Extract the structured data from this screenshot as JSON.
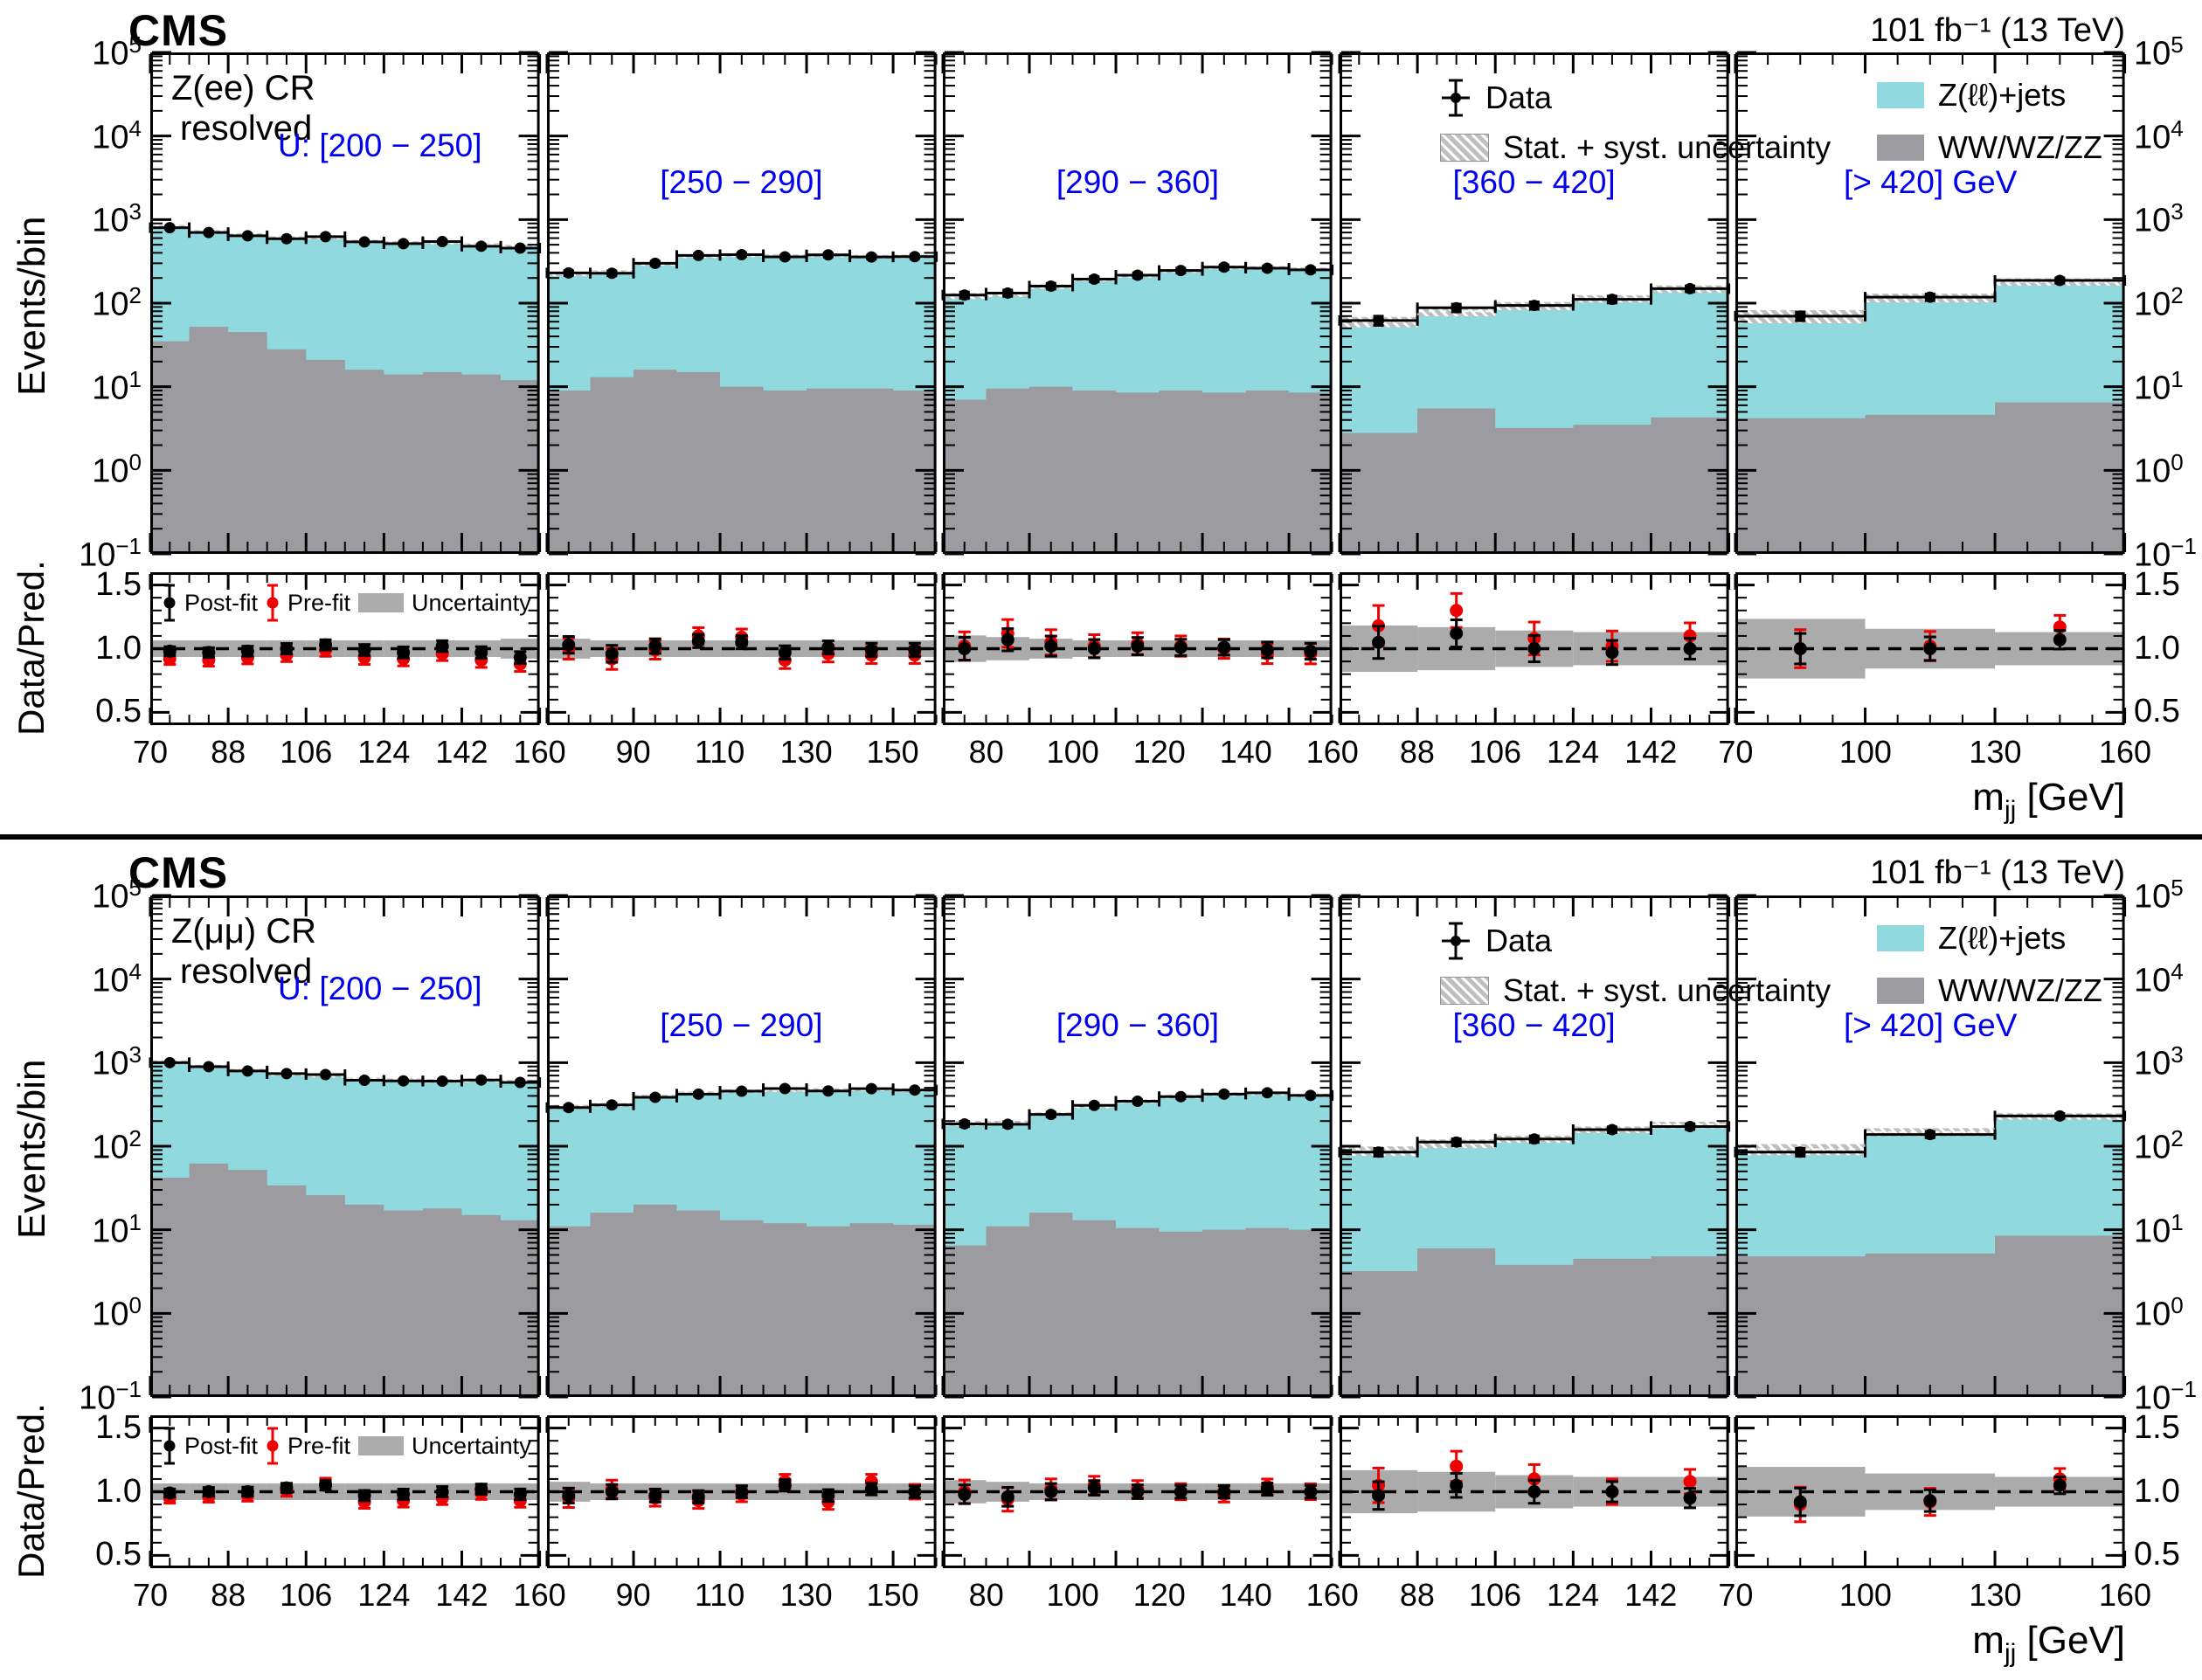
{
  "chart_data": {
    "type": "bar",
    "subtype": "stacked-log-histogram-with-ratio",
    "x_axis_title": {
      "main": "m",
      "sub": "jj",
      "unit": " [GeV]"
    },
    "y_tick_exponents": [
      "5",
      "4",
      "3",
      "2",
      "1",
      "0",
      "−1"
    ],
    "ratio_tick_labels": [
      {
        "v": 1.5,
        "t": "1.5"
      },
      {
        "v": 1.0,
        "t": "1.0"
      },
      {
        "v": 0.5,
        "t": "0.5"
      }
    ],
    "y_range_exp": [
      -1,
      5
    ],
    "ratio_range": [
      0.4,
      1.6
    ],
    "colors": {
      "zjets": "#8FD9DF",
      "vv": "#9C9CA0",
      "band": "#ABABAB",
      "hatch_gray": "#BFBFBF",
      "blue": "#0000EE",
      "red": "#EE0000"
    },
    "figures": [
      {
        "cms": "CMS",
        "lumi": "101 fb⁻¹ (13 TeV)",
        "region": "Z(ee) CR",
        "mode": "resolved",
        "events_axis_title": "Events/bin",
        "ratio_axis_title": "Data/Pred.",
        "legend": {
          "data": "Data",
          "unc": "Stat. + syst. uncertainty",
          "zjets": "Z(ℓℓ)+jets",
          "vv": "WW/WZ/ZZ"
        },
        "ratio_legend": {
          "post": "Post-fit",
          "pre": "Pre-fit",
          "unc": "Uncertainty"
        },
        "panels": [
          {
            "label": "U: [200 − 250]",
            "x_min": 70,
            "x_max": 160,
            "bin_width": 9,
            "x_major_step": 18,
            "x_labels": [
              70,
              88,
              106,
              124,
              142,
              160
            ],
            "vv": [
              35,
              52,
              45,
              28,
              21,
              16,
              14,
              15,
              14,
              12
            ],
            "total": [
              820,
              710,
              650,
              600,
              610,
              545,
              525,
              535,
              495,
              470
            ],
            "data": [
              800,
              700,
              640,
              590,
              625,
              540,
              515,
              545,
              480,
              455
            ],
            "band_frac": [
              0.05,
              0.05,
              0.05,
              0.05,
              0.05,
              0.05,
              0.05,
              0.05,
              0.05,
              0.06
            ],
            "ratio_post": [
              0.98,
              0.97,
              0.98,
              1.0,
              1.03,
              0.99,
              0.97,
              1.02,
              0.97,
              0.93
            ],
            "ratio_pre": [
              0.92,
              0.91,
              0.93,
              0.95,
              0.99,
              0.93,
              0.92,
              0.96,
              0.91,
              0.88
            ]
          },
          {
            "label": "[250 − 290]",
            "x_min": 70,
            "x_max": 160,
            "bin_width": 10,
            "x_major_step": 20,
            "x_labels": [
              90,
              110,
              130,
              150
            ],
            "vv": [
              9,
              13,
              16,
              15,
              10,
              9,
              9.5,
              9.5,
              9
            ],
            "total": [
              225,
              235,
              295,
              365,
              375,
              365,
              375,
              360,
              362
            ],
            "data": [
              230,
              228,
              300,
              372,
              380,
              358,
              378,
              357,
              360
            ],
            "band_frac": [
              0.06,
              0.05,
              0.05,
              0.05,
              0.05,
              0.05,
              0.05,
              0.05,
              0.05
            ],
            "ratio_post": [
              1.03,
              0.96,
              1.02,
              1.06,
              1.05,
              0.97,
              1.01,
              0.99,
              0.99
            ],
            "ratio_pre": [
              1.0,
              0.92,
              0.99,
              1.1,
              1.09,
              0.91,
              0.96,
              0.95,
              0.95
            ]
          },
          {
            "label": "[290 − 360]",
            "x_min": 70,
            "x_max": 160,
            "bin_width": 10,
            "x_major_step": 20,
            "x_labels": [
              80,
              100,
              120,
              140,
              160
            ],
            "vv": [
              7,
              9.5,
              10,
              9,
              8.5,
              9,
              8.5,
              9,
              8.5
            ],
            "total": [
              122,
              128,
              158,
              192,
              213,
              243,
              268,
              264,
              254
            ],
            "data": [
              125,
              132,
              160,
              194,
              216,
              246,
              270,
              262,
              250
            ],
            "band_frac": [
              0.08,
              0.07,
              0.06,
              0.05,
              0.05,
              0.05,
              0.05,
              0.05,
              0.05
            ],
            "ratio_post": [
              1.0,
              1.07,
              1.02,
              1.0,
              1.02,
              1.01,
              1.01,
              0.99,
              0.98
            ],
            "ratio_pre": [
              1.02,
              1.12,
              1.05,
              1.02,
              1.04,
              1.02,
              1.0,
              0.96,
              0.96
            ]
          },
          {
            "label": "[360 − 420]",
            "x_min": 70,
            "x_max": 160,
            "bin_width": 18,
            "x_major_step": 18,
            "x_labels": [
              88,
              106,
              124,
              142
            ],
            "vv": [
              2.8,
              5.5,
              3.2,
              3.5,
              4.3
            ],
            "total": [
              60,
              80,
              93,
              113,
              148
            ],
            "data": [
              62,
              88,
              94,
              111,
              149
            ],
            "band_frac": [
              0.14,
              0.13,
              0.11,
              0.1,
              0.1
            ],
            "ratio_post": [
              1.05,
              1.12,
              1.0,
              0.97,
              1.0
            ],
            "ratio_pre": [
              1.18,
              1.3,
              1.08,
              1.02,
              1.1
            ]
          },
          {
            "label": "[> 420] GeV",
            "x_min": 70,
            "x_max": 160,
            "bin_width": 30,
            "x_major_step": 30,
            "x_labels": [
              70,
              100,
              130,
              160
            ],
            "vv": [
              4.2,
              4.6,
              6.5
            ],
            "total": [
              70,
              116,
              180
            ],
            "data": [
              70,
              118,
              187
            ],
            "band_frac": [
              0.18,
              0.12,
              0.1
            ],
            "ratio_post": [
              1.0,
              1.0,
              1.07
            ],
            "ratio_pre": [
              1.0,
              1.02,
              1.17
            ]
          }
        ]
      },
      {
        "cms": "CMS",
        "lumi": "101 fb⁻¹ (13 TeV)",
        "region": "Z(μμ) CR",
        "mode": "resolved",
        "events_axis_title": "Events/bin",
        "ratio_axis_title": "Data/Pred.",
        "legend": {
          "data": "Data",
          "unc": "Stat. + syst. uncertainty",
          "zjets": "Z(ℓℓ)+jets",
          "vv": "WW/WZ/ZZ"
        },
        "ratio_legend": {
          "post": "Post-fit",
          "pre": "Pre-fit",
          "unc": "Uncertainty"
        },
        "panels": [
          {
            "label": "U: [200 − 250]",
            "x_min": 70,
            "x_max": 160,
            "bin_width": 9,
            "x_major_step": 18,
            "x_labels": [
              70,
              88,
              106,
              124,
              142,
              160
            ],
            "vv": [
              42,
              62,
              52,
              34,
              26,
              20,
              17,
              18,
              15,
              13
            ],
            "total": [
              1010,
              900,
              800,
              730,
              700,
              630,
              615,
              605,
              615,
              590
            ],
            "data": [
              1000,
              895,
              795,
              740,
              720,
              615,
              605,
              600,
              620,
              580
            ],
            "band_frac": [
              0.05,
              0.05,
              0.05,
              0.05,
              0.05,
              0.05,
              0.05,
              0.05,
              0.05,
              0.05
            ],
            "ratio_post": [
              0.99,
              1.0,
              1.0,
              1.03,
              1.05,
              0.97,
              0.98,
              1.0,
              1.02,
              0.98
            ],
            "ratio_pre": [
              0.95,
              0.96,
              0.97,
              1.01,
              1.06,
              0.92,
              0.93,
              0.95,
              0.99,
              0.93
            ]
          },
          {
            "label": "[250 − 290]",
            "x_min": 70,
            "x_max": 160,
            "bin_width": 10,
            "x_major_step": 20,
            "x_labels": [
              90,
              110,
              130,
              150
            ],
            "vv": [
              11,
              16,
              20,
              17,
              13,
              12,
              11,
              12,
              11.5
            ],
            "total": [
              295,
              312,
              392,
              430,
              455,
              470,
              470,
              480,
              470
            ],
            "data": [
              290,
              312,
              385,
              420,
              455,
              490,
              458,
              488,
              470
            ],
            "band_frac": [
              0.06,
              0.05,
              0.05,
              0.05,
              0.05,
              0.05,
              0.05,
              0.05,
              0.05
            ],
            "ratio_post": [
              0.97,
              1.0,
              0.97,
              0.96,
              1.0,
              1.05,
              0.97,
              1.02,
              1.0
            ],
            "ratio_pre": [
              0.95,
              1.02,
              0.95,
              0.93,
              0.98,
              1.08,
              0.92,
              1.08,
              1.0
            ]
          },
          {
            "label": "[290 − 360]",
            "x_min": 70,
            "x_max": 160,
            "bin_width": 10,
            "x_major_step": 20,
            "x_labels": [
              80,
              100,
              120,
              140,
              160
            ],
            "vv": [
              6.5,
              11,
              16,
              13,
              10.5,
              9.5,
              10,
              10.5,
              10
            ],
            "total": [
              188,
              190,
              242,
              300,
              345,
              392,
              420,
              428,
              405
            ],
            "data": [
              185,
              183,
              240,
              308,
              345,
              392,
              420,
              436,
              405
            ],
            "band_frac": [
              0.07,
              0.06,
              0.05,
              0.05,
              0.05,
              0.05,
              0.05,
              0.05,
              0.05
            ],
            "ratio_post": [
              0.98,
              0.96,
              1.0,
              1.03,
              1.0,
              1.0,
              1.0,
              1.02,
              1.0
            ],
            "ratio_pre": [
              1.0,
              0.94,
              1.02,
              1.05,
              1.02,
              1.0,
              0.98,
              1.04,
              1.0
            ]
          },
          {
            "label": "[360 − 420]",
            "x_min": 70,
            "x_max": 160,
            "bin_width": 18,
            "x_major_step": 18,
            "x_labels": [
              88,
              106,
              124,
              142
            ],
            "vv": [
              3.2,
              6.0,
              3.8,
              4.5,
              4.8
            ],
            "total": [
              88,
              108,
              122,
              158,
              180
            ],
            "data": [
              85,
              112,
              122,
              158,
              172
            ],
            "band_frac": [
              0.13,
              0.12,
              0.1,
              0.09,
              0.09
            ],
            "ratio_post": [
              0.97,
              1.05,
              1.0,
              1.0,
              0.95
            ],
            "ratio_pre": [
              1.05,
              1.2,
              1.1,
              1.0,
              1.08
            ]
          },
          {
            "label": "[> 420] GeV",
            "x_min": 70,
            "x_max": 160,
            "bin_width": 30,
            "x_major_step": 30,
            "x_labels": [
              70,
              100,
              130,
              160
            ],
            "vv": [
              4.8,
              5.2,
              8.5
            ],
            "total": [
              92,
              148,
              228
            ],
            "data": [
              85,
              138,
              230
            ],
            "band_frac": [
              0.15,
              0.11,
              0.09
            ],
            "ratio_post": [
              0.92,
              0.93,
              1.05
            ],
            "ratio_pre": [
              0.9,
              0.92,
              1.1
            ]
          }
        ]
      }
    ]
  }
}
